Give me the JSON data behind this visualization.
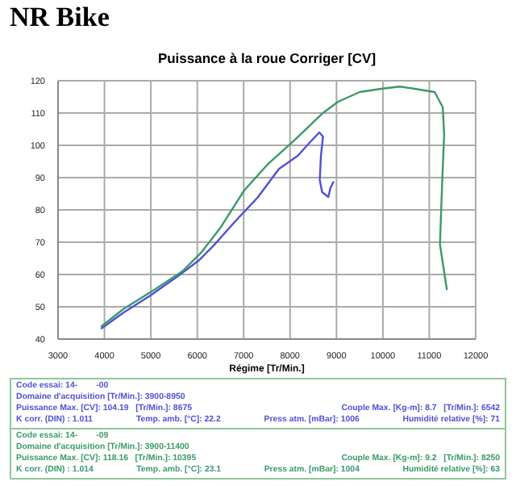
{
  "chart_data": {
    "type": "line",
    "title": "NR Bike",
    "subtitle": "Puissance à la roue Corriger [CV]",
    "xlabel": "Régime [Tr/Min.]",
    "xlim": [
      3000,
      12000
    ],
    "xticks": [
      3000,
      4000,
      5000,
      6000,
      7000,
      8000,
      9000,
      10000,
      11000,
      12000
    ],
    "ylim": [
      40,
      120
    ],
    "yticks": [
      40,
      50,
      60,
      70,
      80,
      90,
      100,
      110,
      120
    ],
    "grid": true,
    "marker": "none",
    "line_style": "solid",
    "series": [
      {
        "color": "#5050d8",
        "x": [
          3925,
          4410,
          4990,
          5565,
          6030,
          6375,
          6840,
          7300,
          7760,
          8170,
          8400,
          8630,
          8710,
          8665,
          8640,
          8690,
          8825,
          8870,
          8940
        ],
        "values": [
          43.2,
          48.2,
          53.5,
          59.3,
          64.3,
          69.3,
          76.8,
          83.8,
          92.7,
          96.8,
          100.5,
          104,
          102.7,
          96.8,
          89.3,
          85.5,
          84,
          86.8,
          88.8
        ]
      },
      {
        "color": "#3a9a6a",
        "x": [
          3925,
          4410,
          5100,
          5680,
          6085,
          6490,
          7010,
          7530,
          8110,
          8690,
          9035,
          9500,
          9960,
          10365,
          10770,
          11115,
          11290,
          11320,
          11265,
          11230,
          11380
        ],
        "values": [
          43.8,
          49.3,
          55.5,
          61,
          66.8,
          74.3,
          86,
          94.3,
          101.8,
          109.8,
          113.5,
          116.5,
          117.5,
          118.2,
          117.3,
          116.5,
          111.8,
          103.5,
          83.5,
          69.3,
          55.2
        ]
      }
    ],
    "annotations": [
      "Code essai: 14-        -00",
      "Domaine d'acquisition [Tr/Min.]: 3900-8950",
      "Puissance Max. [CV]: 104.19   [Tr/Min.]: 8675",
      "Couple Max. [Kg-m]: 8.7   [Tr/Min.]: 6542",
      "K corr. (DIN) : 1.011",
      "Temp. amb. [°C]: 22.2",
      "Press atm. [mBar]: 1006",
      "Humidité relative [%]: 71",
      "Code essai: 14-        -09",
      "Domaine d'acquisition [Tr/Min.]: 3900-11400",
      "Puissance Max. [CV]: 118.16   [Tr/Min.]: 10395",
      "Couple Max. [Kg-m]: 9.2   [Tr/Min.]: 8250",
      "K corr. (DIN) : 1.014",
      "Temp. amb. [°C]: 23.1",
      "Press atm. [mBar]: 1004",
      "Humidité relative [%]: 63"
    ]
  }
}
